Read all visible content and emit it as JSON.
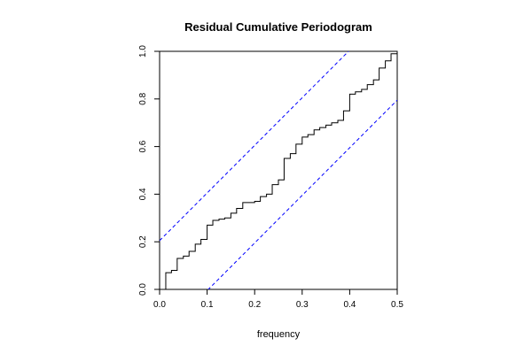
{
  "chart_data": {
    "type": "line",
    "title": "Residual Cumulative Periodogram",
    "xlabel": "frequency",
    "ylabel": "",
    "xlim": [
      0,
      0.5
    ],
    "ylim": [
      0,
      1
    ],
    "xticks": [
      "0.0",
      "0.1",
      "0.2",
      "0.3",
      "0.4",
      "0.5"
    ],
    "yticks": [
      "0.0",
      "0.2",
      "0.4",
      "0.6",
      "0.8",
      "1.0"
    ],
    "grid": false,
    "series": [
      {
        "style": "step",
        "color": "#000000",
        "x": [
          0.0,
          0.013,
          0.025,
          0.037,
          0.05,
          0.062,
          0.075,
          0.087,
          0.1,
          0.112,
          0.125,
          0.137,
          0.15,
          0.162,
          0.175,
          0.187,
          0.2,
          0.212,
          0.225,
          0.237,
          0.25,
          0.262,
          0.275,
          0.287,
          0.3,
          0.312,
          0.325,
          0.337,
          0.35,
          0.362,
          0.375,
          0.387,
          0.4,
          0.412,
          0.425,
          0.437,
          0.45,
          0.462,
          0.475,
          0.487,
          0.5
        ],
        "y": [
          0.0,
          0.07,
          0.08,
          0.13,
          0.14,
          0.16,
          0.19,
          0.21,
          0.27,
          0.29,
          0.295,
          0.3,
          0.32,
          0.34,
          0.365,
          0.365,
          0.37,
          0.39,
          0.4,
          0.44,
          0.46,
          0.55,
          0.57,
          0.61,
          0.64,
          0.65,
          0.67,
          0.68,
          0.69,
          0.7,
          0.71,
          0.75,
          0.82,
          0.83,
          0.84,
          0.86,
          0.88,
          0.93,
          0.96,
          0.99,
          1.0
        ]
      },
      {
        "style": "dashed",
        "color": "#0000ff",
        "x": [
          0.0,
          0.5
        ],
        "y": [
          0.205,
          1.205
        ]
      },
      {
        "style": "dashed",
        "color": "#0000ff",
        "x": [
          0.0,
          0.5
        ],
        "y": [
          -0.205,
          0.795
        ]
      }
    ]
  }
}
